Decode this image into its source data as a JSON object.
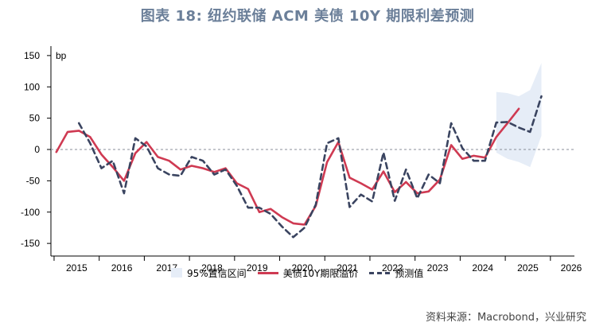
{
  "title": "图表 18: 纽约联储 ACM 美债 10Y 期限利差预测",
  "source": "资料来源：Macrobond，兴业研究",
  "colors": {
    "actual": "#cf3a52",
    "forecast": "#3a4460",
    "band": "#e6edf7",
    "title": "#6b7f99"
  },
  "chart_data": {
    "type": "line",
    "title": "图表 18: 纽约联储 ACM 美债 10Y 期限利差预测",
    "ylabel": "bp",
    "ylim": [
      -160,
      160
    ],
    "yticks": [
      150,
      100,
      50,
      0,
      -50,
      -100,
      -150
    ],
    "xlim": [
      2014.88,
      2026.2
    ],
    "xtick_labels": [
      "2015",
      "2016",
      "2017",
      "2018",
      "2019",
      "2020",
      "2021",
      "2022",
      "2023",
      "2024",
      "2025",
      "2026"
    ],
    "zero_line": true,
    "legend": [
      "95%置信区间",
      "美债10Y期限溢价",
      "预测值"
    ],
    "legend_position": "bottom",
    "series": [
      {
        "name": "美债10Y期限溢价",
        "style": "solid",
        "x": [
          2015.0,
          2015.25,
          2015.5,
          2015.75,
          2016.0,
          2016.25,
          2016.5,
          2016.75,
          2017.0,
          2017.25,
          2017.5,
          2017.75,
          2018.0,
          2018.25,
          2018.5,
          2018.75,
          2019.0,
          2019.25,
          2019.5,
          2019.75,
          2020.0,
          2020.25,
          2020.5,
          2020.75,
          2021.0,
          2021.25,
          2021.5,
          2021.75,
          2022.0,
          2022.25,
          2022.5,
          2022.75,
          2023.0,
          2023.25,
          2023.5,
          2023.75,
          2024.0,
          2024.25,
          2024.5,
          2024.75,
          2025.0,
          2025.25
        ],
        "y": [
          -4,
          28,
          30,
          20,
          -8,
          -28,
          -50,
          -6,
          12,
          -12,
          -18,
          -32,
          -26,
          -30,
          -36,
          -30,
          -54,
          -63,
          -100,
          -95,
          -108,
          -118,
          -120,
          -90,
          -20,
          12,
          -45,
          -54,
          -64,
          -35,
          -68,
          -52,
          -70,
          -67,
          -48,
          7,
          -15,
          -10,
          -13,
          20,
          42,
          65
        ]
      },
      {
        "name": "预测值",
        "style": "dashed",
        "x": [
          2015.5,
          2015.75,
          2016.0,
          2016.25,
          2016.5,
          2016.75,
          2017.0,
          2017.25,
          2017.5,
          2017.75,
          2018.0,
          2018.25,
          2018.5,
          2018.75,
          2019.0,
          2019.25,
          2019.5,
          2019.75,
          2020.0,
          2020.25,
          2020.5,
          2020.75,
          2021.0,
          2021.25,
          2021.5,
          2021.75,
          2022.0,
          2022.25,
          2022.5,
          2022.75,
          2023.0,
          2023.25,
          2023.5,
          2023.75,
          2024.0,
          2024.25,
          2024.5,
          2024.75,
          2025.0,
          2025.25,
          2025.5,
          2025.75
        ],
        "y": [
          42,
          10,
          -30,
          -18,
          -70,
          18,
          5,
          -30,
          -40,
          -42,
          -12,
          -18,
          -40,
          -32,
          -58,
          -93,
          -93,
          -103,
          -123,
          -140,
          -125,
          -88,
          10,
          18,
          -92,
          -72,
          -83,
          -5,
          -82,
          -32,
          -78,
          -40,
          -54,
          42,
          2,
          -18,
          -18,
          43,
          44,
          35,
          28,
          85
        ]
      }
    ],
    "confidence_band": {
      "name": "95%置信区间",
      "x": [
        2024.75,
        2025.0,
        2025.25,
        2025.5,
        2025.75
      ],
      "upper": [
        92,
        90,
        85,
        95,
        138
      ],
      "lower": [
        -5,
        -15,
        -20,
        -28,
        22
      ]
    }
  }
}
